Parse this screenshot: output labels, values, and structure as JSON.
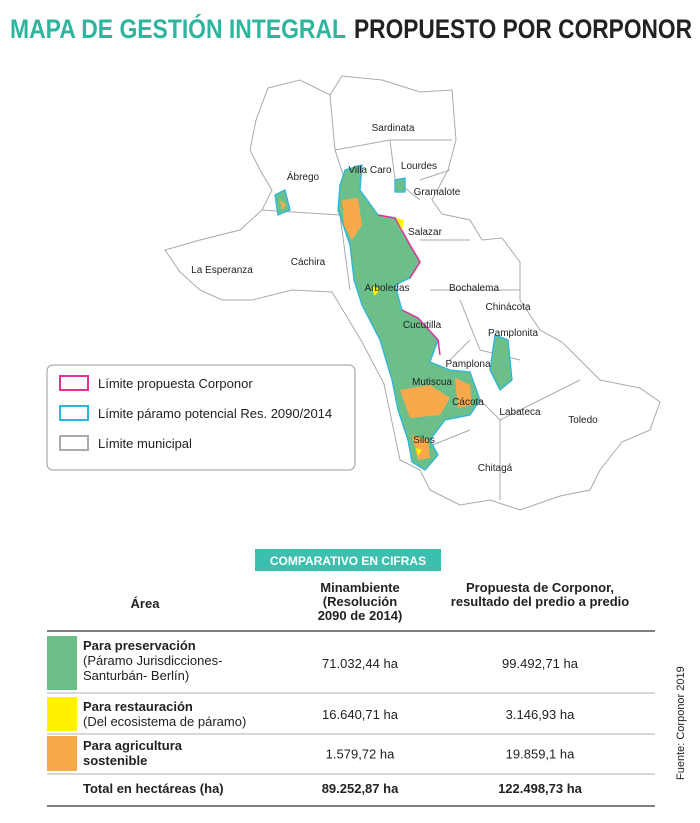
{
  "header": {
    "title_part1": "MAPA DE GESTIÓN INTEGRAL",
    "title_part2": "PROPUESTO POR CORPONOR"
  },
  "map": {
    "labels": [
      "Sardinata",
      "Villa Caro",
      "Lourdes",
      "Ábrego",
      "Gramalote",
      "Salazar",
      "Cáchira",
      "La Esperanza",
      "Arboledas",
      "Bochalema",
      "Chinácota",
      "Cucutilla",
      "Pamplonita",
      "Pamplona",
      "Mutiscua",
      "Cácota",
      "Labateca",
      "Toledo",
      "Silos",
      "Chitagá"
    ]
  },
  "legend": {
    "items": [
      "Límite propuesta Corponor",
      "Límite páramo potencial Res. 2090/2014",
      "Límite municipal"
    ]
  },
  "table": {
    "banner": "COMPARATIVO EN CIFRAS",
    "headers": [
      [
        "Área"
      ],
      [
        "Minambiente",
        "(Resolución",
        "2090 de 2014)"
      ],
      [
        "Propuesta de  Corponor,",
        "resultado del predio a predio"
      ]
    ],
    "rows": [
      {
        "title": [
          "Para preservación"
        ],
        "description": [
          "(Páramo Jurisdicciones-",
          "Santurbán- Berlín)"
        ],
        "values": [
          "71.032,44 ha",
          "99.492,71 ha"
        ]
      },
      {
        "title": [
          "Para restauración"
        ],
        "description": [
          "(Del ecosistema de páramo)"
        ],
        "values": [
          "16.640,71 ha",
          "3.146,93 ha"
        ]
      },
      {
        "title": [
          "Para agricultura",
          "sostenible"
        ],
        "values": [
          "1.579,72 ha",
          "19.859,1 ha"
        ]
      }
    ],
    "total": {
      "label": "Total en hectáreas (ha)",
      "values": [
        "89.252,87 ha",
        "122.498,73 ha"
      ]
    }
  },
  "source": "Fuente: Corponor 2019"
}
